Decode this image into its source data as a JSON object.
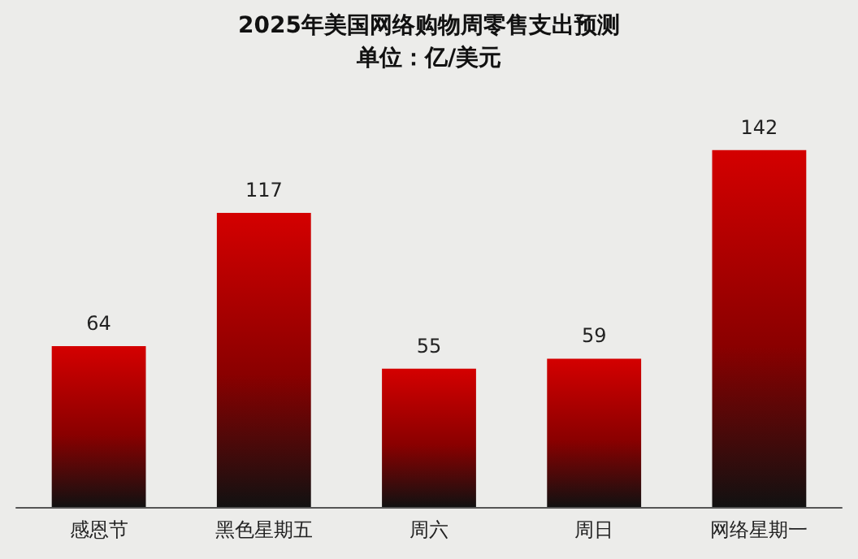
{
  "chart_data": {
    "type": "bar",
    "title": "2025年美国网络购物周零售支出预测",
    "subtitle": "单位：亿/美元",
    "categories": [
      "感恩节",
      "黑色星期五",
      "周六",
      "周日",
      "网络星期一"
    ],
    "values": [
      64,
      117,
      55,
      59,
      142
    ],
    "color": "#d40000",
    "data_labels": true
  }
}
